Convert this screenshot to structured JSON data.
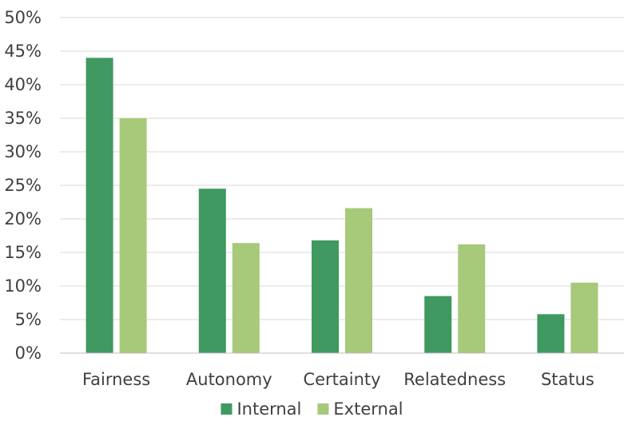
{
  "chart_data": {
    "type": "bar",
    "categories": [
      "Fairness",
      "Autonomy",
      "Certainty",
      "Relatedness",
      "Status"
    ],
    "series": [
      {
        "name": "Internal",
        "values": [
          44,
          24.5,
          16.8,
          8.5,
          5.8
        ],
        "color": "#3f9960"
      },
      {
        "name": "External",
        "values": [
          35,
          16.4,
          21.6,
          16.2,
          10.5
        ],
        "color": "#a6c97a"
      }
    ],
    "y_ticks": [
      "0%",
      "5%",
      "10%",
      "15%",
      "20%",
      "25%",
      "30%",
      "35%",
      "40%",
      "45%",
      "50%"
    ],
    "ylim": [
      0,
      50
    ],
    "y_tick_step": 5,
    "grid": true,
    "legend_position": "bottom-center",
    "title": "",
    "xlabel": "",
    "ylabel": ""
  }
}
